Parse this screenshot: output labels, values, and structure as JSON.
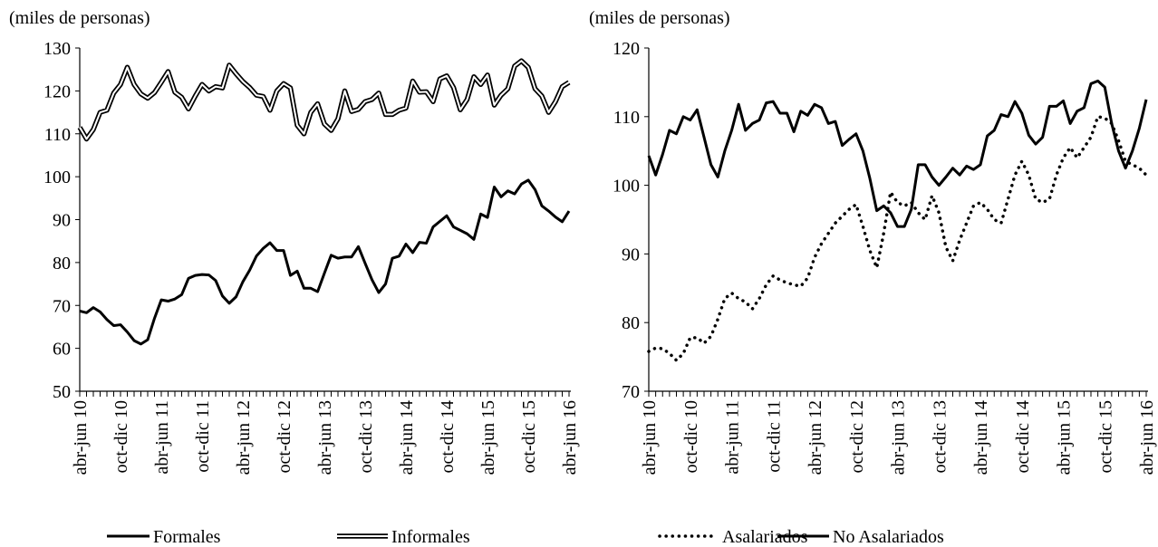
{
  "chart_data": [
    {
      "type": "line",
      "ylabel": "(miles de personas)",
      "categories": [
        "abr-jun 10",
        null,
        null,
        null,
        null,
        null,
        "oct-dic 10",
        null,
        null,
        null,
        null,
        null,
        "abr-jun 11",
        null,
        null,
        null,
        null,
        null,
        "oct-dic 11",
        null,
        null,
        null,
        null,
        null,
        "abr-jun 12",
        null,
        null,
        null,
        null,
        null,
        "oct-dic 12",
        null,
        null,
        null,
        null,
        null,
        "abr-jun 13",
        null,
        null,
        null,
        null,
        null,
        "oct-dic 13",
        null,
        null,
        null,
        null,
        null,
        "abr-jun 14",
        null,
        null,
        null,
        null,
        null,
        "oct-dic 14",
        null,
        null,
        null,
        null,
        null,
        "abr-jun 15",
        null,
        null,
        null,
        null,
        null,
        "oct-dic 15",
        null,
        null,
        null,
        null,
        null,
        "abr-jun 16"
      ],
      "ylim": [
        50,
        130
      ],
      "yticks": [
        50,
        60,
        70,
        80,
        90,
        100,
        110,
        120,
        130
      ],
      "series": [
        {
          "name": "Formales",
          "color": "#000000",
          "style": "solid",
          "values": [
            68.7,
            68.3,
            69.5,
            68.5,
            66.7,
            65.3,
            65.5,
            63.8,
            61.8,
            61,
            62,
            67,
            71.3,
            71,
            71.5,
            72.5,
            76.3,
            77,
            77.2,
            77.1,
            75.8,
            72.2,
            70.5,
            72,
            75.5,
            78.2,
            81.5,
            83.3,
            84.6,
            82.8,
            82.8,
            77,
            78,
            74,
            74,
            73.2,
            77.5,
            81.7,
            81,
            81.3,
            81.3,
            83.7,
            79.8,
            76,
            73,
            75,
            81,
            81.5,
            84.3,
            82.3,
            84.7,
            84.5,
            88.3,
            89.6,
            90.9,
            88.3,
            87.5,
            86.7,
            85.4,
            91.3,
            90.5,
            97.6,
            95.3,
            96.7,
            96,
            98.3,
            99.2,
            97,
            93.2,
            92,
            90.6,
            89.5,
            92
          ]
        },
        {
          "name": "Informales",
          "color": "#000000",
          "style": "double",
          "values": [
            111.5,
            108.8,
            111,
            115,
            115.5,
            119.5,
            121.5,
            125.5,
            121.5,
            119.3,
            118.3,
            119.6,
            122,
            124.5,
            119.7,
            118.5,
            115.8,
            118.8,
            121.5,
            120,
            121,
            120.7,
            126,
            124,
            122.2,
            120.8,
            119,
            118.7,
            115.5,
            120,
            121.7,
            120.7,
            112,
            110,
            115,
            117,
            112.3,
            110.8,
            113.5,
            120,
            115.2,
            115.7,
            117.5,
            118,
            119.5,
            114.5,
            114.5,
            115.5,
            116,
            122.3,
            119.7,
            119.8,
            117.5,
            122.8,
            123.5,
            120.8,
            115.6,
            118,
            123.3,
            121.5,
            123.7,
            116.7,
            119,
            120.5,
            125.8,
            127,
            125.5,
            120.5,
            118.8,
            115,
            117.5,
            121,
            122
          ]
        }
      ]
    },
    {
      "type": "line",
      "ylabel": "(miles de personas)",
      "categories": [
        "abr-jun 10",
        null,
        null,
        null,
        null,
        null,
        "oct-dic 10",
        null,
        null,
        null,
        null,
        null,
        "abr-jun 11",
        null,
        null,
        null,
        null,
        null,
        "oct-dic 11",
        null,
        null,
        null,
        null,
        null,
        "abr-jun 12",
        null,
        null,
        null,
        null,
        null,
        "oct-dic 12",
        null,
        null,
        null,
        null,
        null,
        "abr-jun 13",
        null,
        null,
        null,
        null,
        null,
        "oct-dic 13",
        null,
        null,
        null,
        null,
        null,
        "abr-jun 14",
        null,
        null,
        null,
        null,
        null,
        "oct-dic 14",
        null,
        null,
        null,
        null,
        null,
        "abr-jun 15",
        null,
        null,
        null,
        null,
        null,
        "oct-dic 15",
        null,
        null,
        null,
        null,
        null,
        "abr-jun 16"
      ],
      "ylim": [
        70,
        120
      ],
      "yticks": [
        70,
        80,
        90,
        100,
        110,
        120
      ],
      "series": [
        {
          "name": "Asalariados",
          "color": "#000000",
          "style": "dotted",
          "values": [
            75.8,
            76.3,
            76.2,
            75.5,
            74.5,
            75.5,
            77.8,
            77.8,
            77,
            78,
            80.5,
            83.5,
            84.3,
            83.5,
            83,
            82,
            83.5,
            85.5,
            86.8,
            86.2,
            85.8,
            85.5,
            85.3,
            86.5,
            89.5,
            91.5,
            93,
            94.5,
            95.5,
            96.5,
            97.2,
            94,
            90.5,
            88,
            93,
            99,
            97.5,
            97,
            97.5,
            96,
            95,
            98.5,
            96,
            91,
            89,
            92,
            94.5,
            97,
            97.5,
            96.5,
            95,
            94.5,
            98,
            101.5,
            103.5,
            101.5,
            98,
            97.5,
            98,
            101.5,
            104,
            105.5,
            104,
            105.5,
            107,
            110,
            109.8,
            109,
            106.5,
            103.5,
            103,
            102.5,
            101.5
          ]
        },
        {
          "name": "No Asalariados",
          "color": "#000000",
          "style": "solid",
          "values": [
            104.3,
            101.5,
            104.5,
            108,
            107.5,
            110,
            109.5,
            111,
            107,
            103,
            101.2,
            105,
            108,
            111.8,
            108,
            109,
            109.5,
            112,
            112.2,
            110.5,
            110.5,
            107.8,
            110.8,
            110.2,
            111.8,
            111.3,
            109,
            109.3,
            105.8,
            106.7,
            107.5,
            105,
            101,
            96.3,
            97,
            96,
            94,
            94,
            96.5,
            103,
            103,
            101.2,
            100,
            101.2,
            102.5,
            101.5,
            102.8,
            102.3,
            103,
            107.2,
            108,
            110.3,
            110,
            112.2,
            110.5,
            107.3,
            106,
            107,
            111.5,
            111.5,
            112.3,
            109,
            110.8,
            111.3,
            114.8,
            115.2,
            114.3,
            109,
            105,
            102.5,
            105,
            108.3,
            112.5
          ]
        }
      ]
    }
  ]
}
